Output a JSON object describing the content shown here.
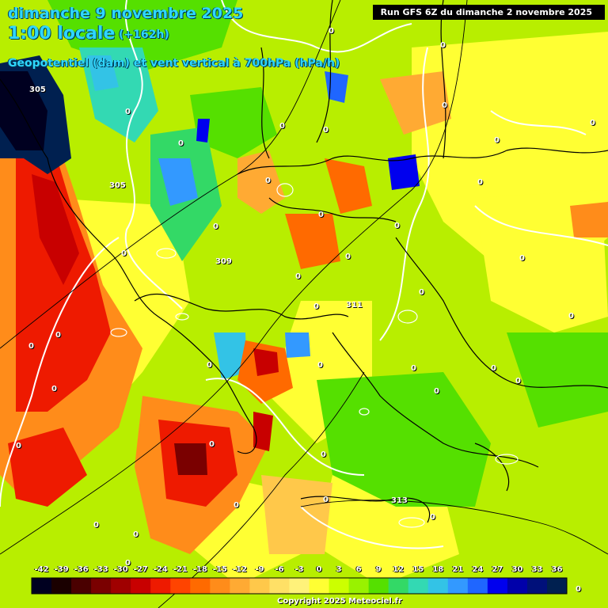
{
  "header": {
    "date_line": "dimanche 9 novembre 2025",
    "time_line": "1:00 locale",
    "lead": "(+162h)",
    "variable": "Geopotentiel (dam) et vent vertical à 700hPa (hPa/h)"
  },
  "run_label": "Run GFS 6Z du dimanche 2 novembre 2025",
  "copyright": "Copyright 2025 Meteociel.fr",
  "legend": {
    "values": [
      "-42",
      "-39",
      "-36",
      "-33",
      "-30",
      "-27",
      "-24",
      "-21",
      "-18",
      "-15",
      "-12",
      "-9",
      "-6",
      "-3",
      "0",
      "3",
      "6",
      "9",
      "12",
      "15",
      "18",
      "21",
      "24",
      "27",
      "30",
      "33",
      "36"
    ],
    "colors": [
      "#000020",
      "#1a0000",
      "#4a0000",
      "#7a0000",
      "#a00000",
      "#c80000",
      "#ee1a00",
      "#ff4400",
      "#ff6a00",
      "#ff8c1a",
      "#ffaa33",
      "#ffc84a",
      "#ffe066",
      "#fff27a",
      "#ffff33",
      "#ccff00",
      "#99f200",
      "#55e000",
      "#33d966",
      "#33d9b3",
      "#33c3e6",
      "#3399ff",
      "#1f66ff",
      "#0000ee",
      "#0000aa",
      "#00107a",
      "#002050"
    ]
  },
  "geopotential_labels": [
    {
      "text": "305"
    },
    {
      "text": "305"
    },
    {
      "text": "309"
    },
    {
      "text": "311"
    },
    {
      "text": "313"
    }
  ],
  "zero_labels": [
    "0",
    "0",
    "0",
    "0",
    "0",
    "0",
    "0",
    "0",
    "0",
    "0",
    "0",
    "0",
    "0",
    "0",
    "0",
    "0",
    "0",
    "0",
    "0",
    "0",
    "0",
    "0",
    "0",
    "0",
    "0",
    "0",
    "0",
    "0",
    "0",
    "0",
    "0",
    "0",
    "0",
    "0",
    "0",
    "0",
    "0",
    "0",
    "0",
    "0"
  ]
}
